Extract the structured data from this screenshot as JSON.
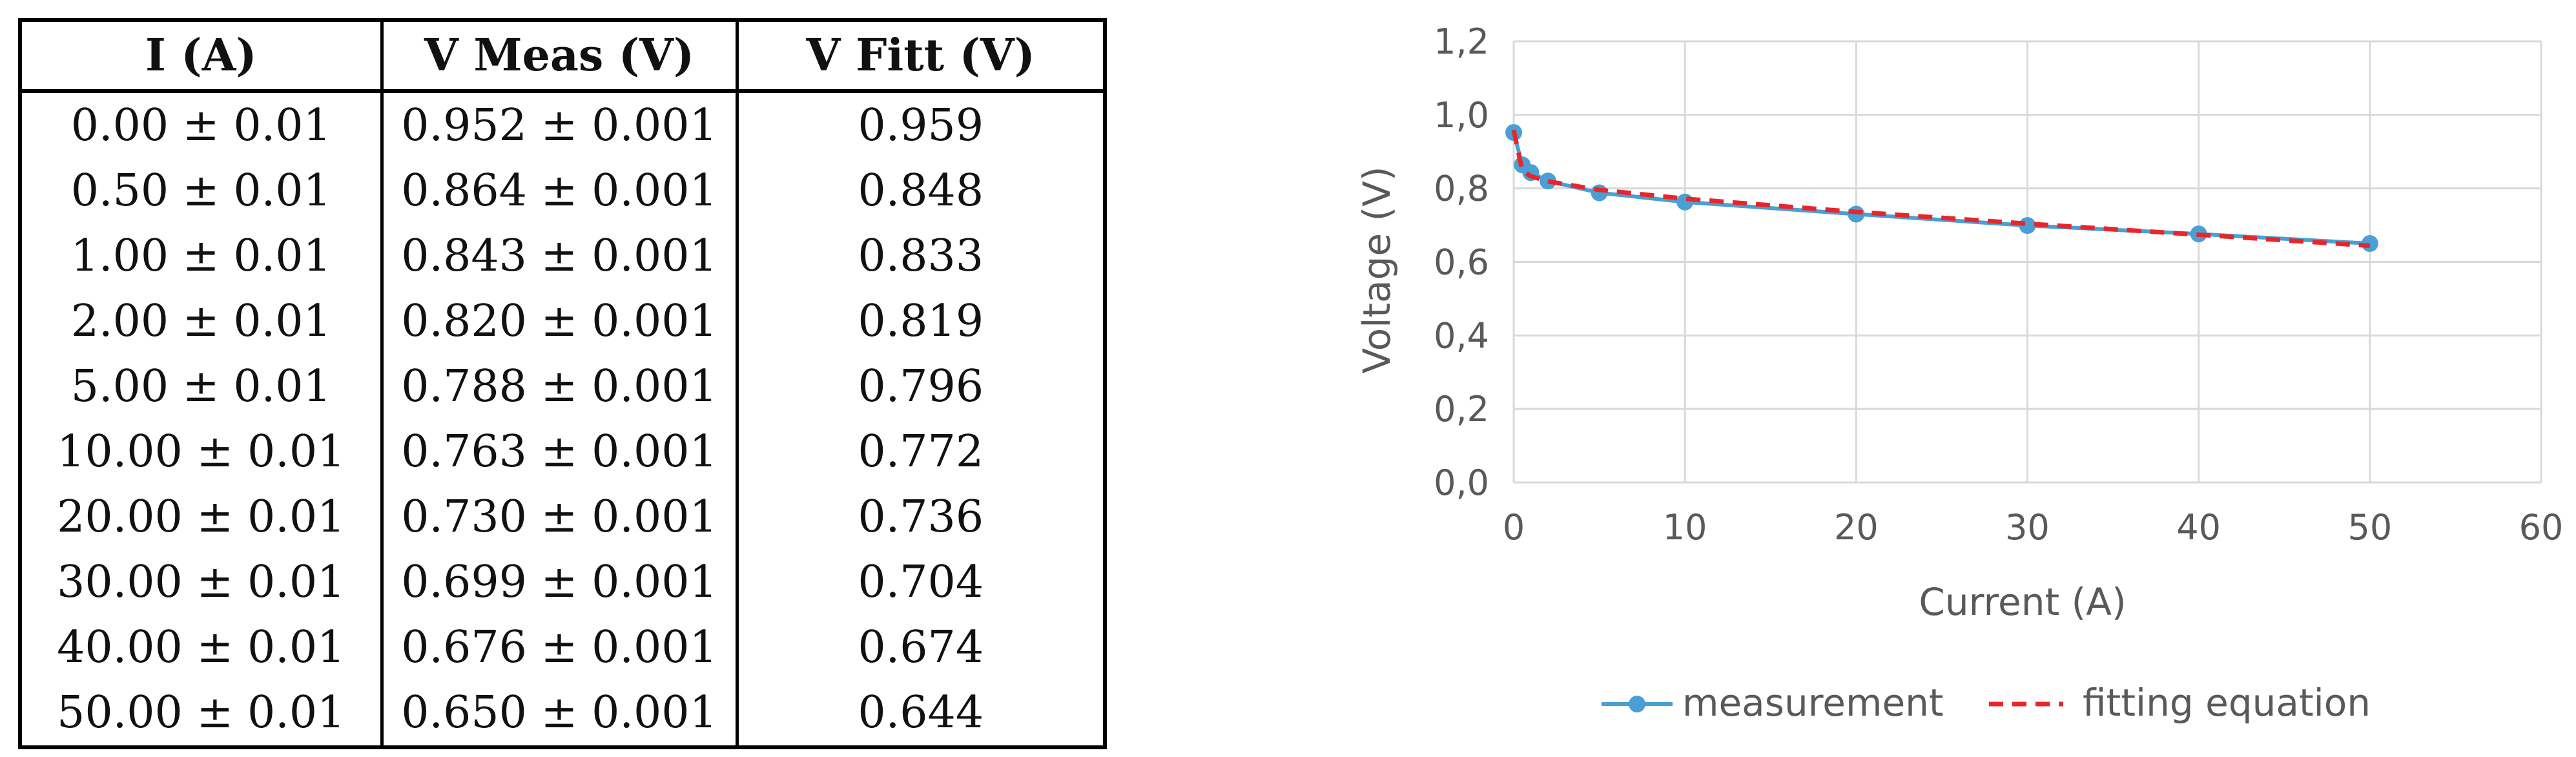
{
  "table": {
    "headers": [
      "I (A)",
      "V Meas (V)",
      "V Fitt (V)"
    ],
    "rows": [
      [
        "0.00 ± 0.01",
        "0.952 ± 0.001",
        "0.959"
      ],
      [
        "0.50 ± 0.01",
        "0.864 ± 0.001",
        "0.848"
      ],
      [
        "1.00 ± 0.01",
        "0.843 ± 0.001",
        "0.833"
      ],
      [
        "2.00 ± 0.01",
        "0.820 ± 0.001",
        "0.819"
      ],
      [
        "5.00 ± 0.01",
        "0.788 ± 0.001",
        "0.796"
      ],
      [
        "10.00 ± 0.01",
        "0.763 ± 0.001",
        "0.772"
      ],
      [
        "20.00 ± 0.01",
        "0.730 ± 0.001",
        "0.736"
      ],
      [
        "30.00 ± 0.01",
        "0.699 ± 0.001",
        "0.704"
      ],
      [
        "40.00 ± 0.01",
        "0.676 ± 0.001",
        "0.674"
      ],
      [
        "50.00 ± 0.01",
        "0.650 ± 0.001",
        "0.644"
      ]
    ]
  },
  "chart_data": {
    "type": "line",
    "title": "",
    "xlabel": "Current (A)",
    "ylabel": "Voltage (V)",
    "xlim": [
      0,
      60
    ],
    "ylim": [
      0,
      1.2
    ],
    "xticks": [
      "0",
      "10",
      "20",
      "30",
      "40",
      "50",
      "60"
    ],
    "yticks": [
      "0,0",
      "0,2",
      "0,4",
      "0,6",
      "0,8",
      "1,0",
      "1,2"
    ],
    "grid": true,
    "legend_position": "bottom",
    "series": [
      {
        "name": "measurement",
        "style": "solid line with circle markers",
        "color": "#4a9fd4",
        "x": [
          0,
          0.5,
          1,
          2,
          5,
          10,
          20,
          30,
          40,
          50
        ],
        "y": [
          0.952,
          0.864,
          0.843,
          0.82,
          0.788,
          0.763,
          0.73,
          0.699,
          0.676,
          0.65
        ]
      },
      {
        "name": "fitting equation",
        "style": "dashed line",
        "color": "#e8262a",
        "x": [
          0,
          0.5,
          1,
          2,
          5,
          10,
          20,
          30,
          40,
          50
        ],
        "y": [
          0.959,
          0.848,
          0.833,
          0.819,
          0.796,
          0.772,
          0.736,
          0.704,
          0.674,
          0.644
        ]
      }
    ]
  }
}
